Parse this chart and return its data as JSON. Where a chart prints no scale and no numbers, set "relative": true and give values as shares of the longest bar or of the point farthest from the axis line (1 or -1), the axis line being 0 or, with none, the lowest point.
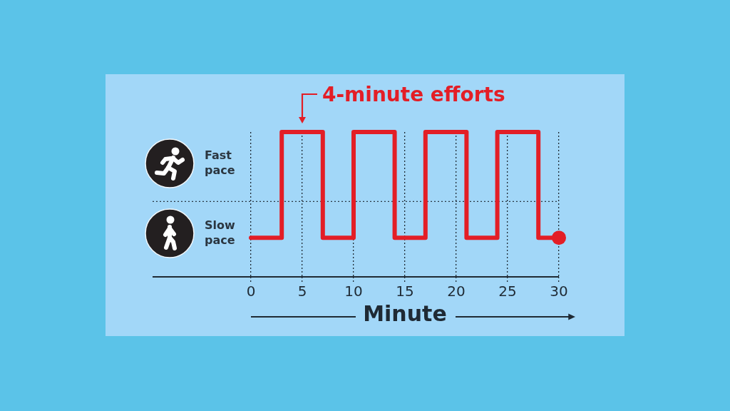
{
  "chart_data": {
    "type": "step",
    "relative": true,
    "annotations": [
      {
        "text": "4-minute efforts",
        "x": "5",
        "y": 1
      },
      "Fast pace",
      "Slow pace"
    ],
    "xlabel": "Minute",
    "categories": [
      "0",
      null,
      null,
      null,
      null,
      "5",
      null,
      null,
      null,
      null,
      "10",
      null,
      null,
      null,
      null,
      "15",
      null,
      null,
      null,
      null,
      "20",
      null,
      null,
      null,
      null,
      "25",
      null,
      null,
      null,
      null,
      "30"
    ],
    "series": [
      {
        "color": "#e31e26",
        "values": [
          0.27,
          0.27,
          0.27,
          1,
          1,
          1,
          1,
          0.27,
          0.27,
          0.27,
          1,
          1,
          1,
          1,
          0.27,
          0.27,
          0.27,
          1,
          1,
          1,
          1,
          0.27,
          0.27,
          0.27,
          1,
          1,
          1,
          1,
          0.27,
          0.27,
          0.27
        ]
      },
      {
        "type": "scatter",
        "x": [
          "30"
        ],
        "values": [
          0.27
        ],
        "color": "#e31e26",
        "marker": "circle"
      }
    ],
    "grid": "x",
    "ref_lines": [
      {
        "axis": "y",
        "value": 0.52,
        "color": "#2a3744",
        "line_style": "dotted"
      }
    ]
  }
}
